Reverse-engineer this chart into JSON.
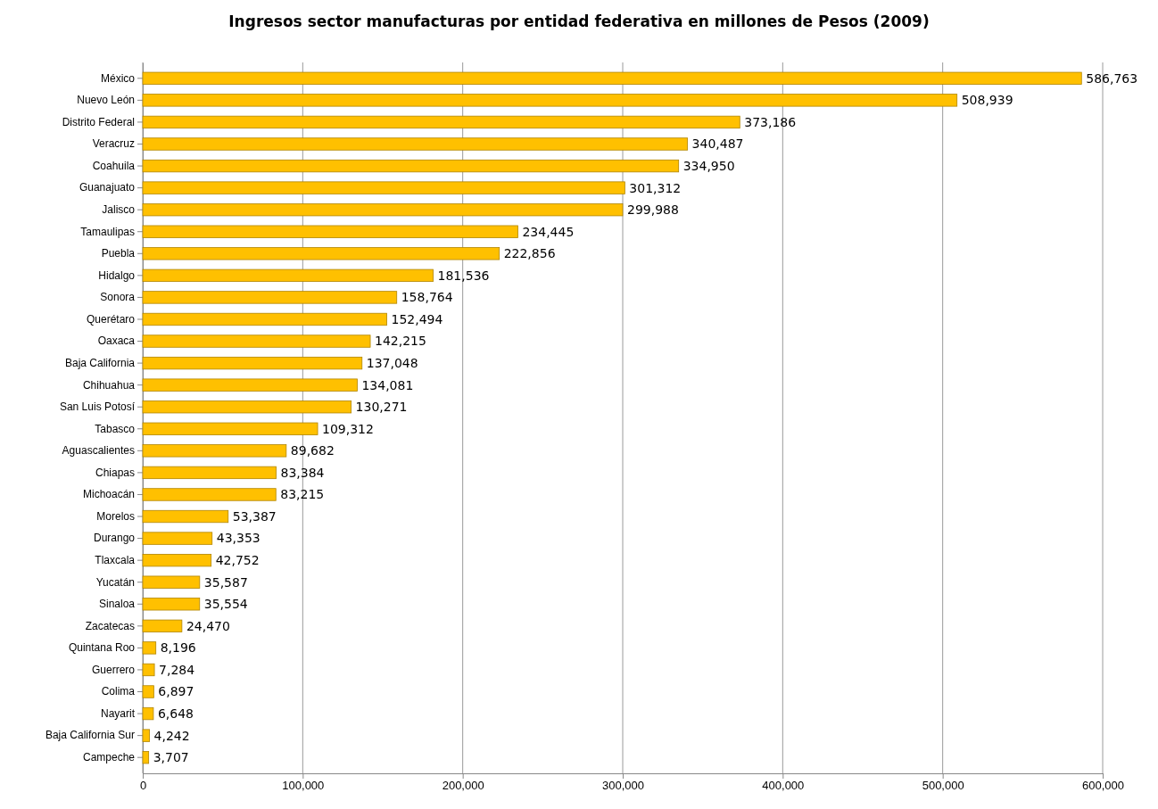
{
  "chart_data": {
    "type": "bar",
    "orientation": "horizontal",
    "title": "Ingresos  sector manufacturas por entidad federativa en millones de Pesos (2009)",
    "categories": [
      "México",
      "Nuevo León",
      "Distrito Federal",
      "Veracruz",
      "Coahuila",
      "Guanajuato",
      "Jalisco",
      "Tamaulipas",
      "Puebla",
      "Hidalgo",
      "Sonora",
      "Querétaro",
      "Oaxaca",
      "Baja California",
      "Chihuahua",
      "San Luis Potosí",
      "Tabasco",
      "Aguascalientes",
      "Chiapas",
      "Michoacán",
      "Morelos",
      "Durango",
      "Tlaxcala",
      "Yucatán",
      "Sinaloa",
      "Zacatecas",
      "Quintana Roo",
      "Guerrero",
      "Colima",
      "Nayarit",
      "Baja California Sur",
      "Campeche"
    ],
    "values": [
      586763,
      508939,
      373186,
      340487,
      334950,
      301312,
      299988,
      234445,
      222856,
      181536,
      158764,
      152494,
      142215,
      137048,
      134081,
      130271,
      109312,
      89682,
      83384,
      83215,
      53387,
      43353,
      42752,
      35587,
      35554,
      24470,
      8196,
      7284,
      6897,
      6648,
      4242,
      3707
    ],
    "value_labels": [
      "586,763",
      "508,939",
      "373,186",
      "340,487",
      "334,950",
      "301,312",
      "299,988",
      "234,445",
      "222,856",
      "181,536",
      "158,764",
      "152,494",
      "142,215",
      "137,048",
      "134,081",
      "130,271",
      "109,312",
      "89,682",
      "83,384",
      "83,215",
      "53,387",
      "43,353",
      "42,752",
      "35,587",
      "35,554",
      "24,470",
      "8,196",
      "7,284",
      "6,897",
      "6,648",
      "4,242",
      "3,707"
    ],
    "color": "#ffc000",
    "xlim": [
      0,
      600000
    ],
    "xticks": [
      0,
      {
        "value": 100000,
        "label": "100,000"
      },
      {
        "value": 200000,
        "label": "200,000"
      },
      {
        "value": 300000,
        "label": "300,000"
      },
      {
        "value": 400000,
        "label": "400,000"
      },
      {
        "value": 500000,
        "label": "500,000"
      },
      {
        "value": 600000,
        "label": "600,000"
      }
    ],
    "grid": "x"
  }
}
